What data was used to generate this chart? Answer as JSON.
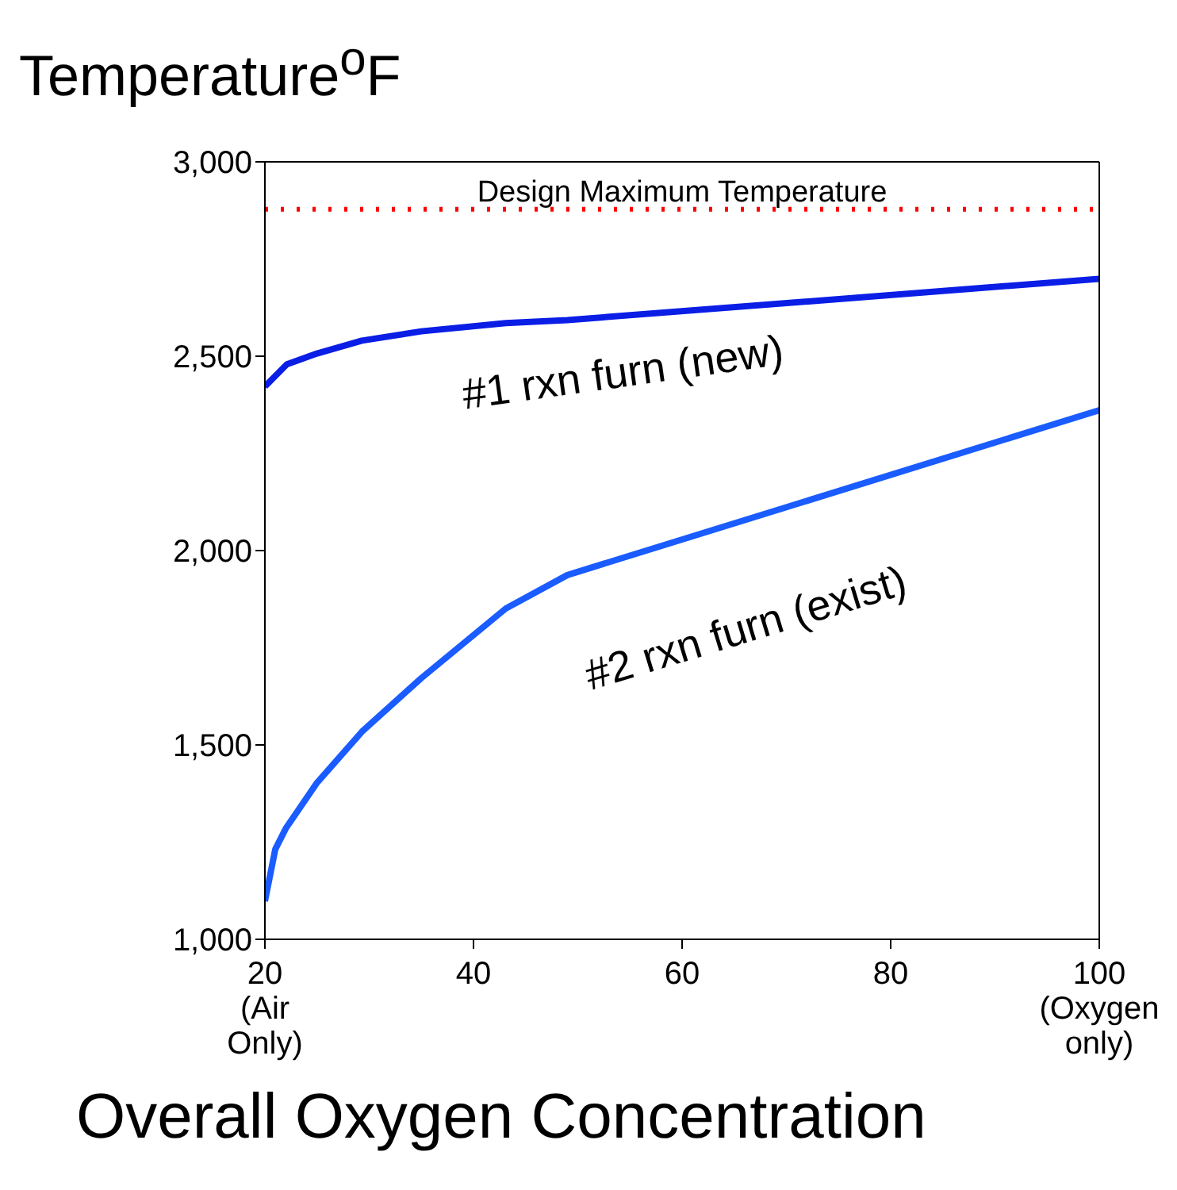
{
  "chart_data": {
    "type": "line",
    "ylabel": "Temperature$^{o}$F",
    "xlabel": "Overall Oxygen Concentration",
    "xlim": [
      20,
      100
    ],
    "xticks": [
      {
        "value": 20,
        "label": "20\n(Air\nOnly)"
      },
      40,
      60,
      80,
      {
        "value": 100,
        "label": "100\n(Oxygen\nonly)"
      }
    ],
    "ylim": [
      1000,
      3000
    ],
    "yticks": [
      {
        "value": 1000,
        "label": "1,000"
      },
      {
        "value": 1500,
        "label": "1,500"
      },
      {
        "value": 2000,
        "label": "2,000"
      },
      {
        "value": 2500,
        "label": "2,500"
      },
      {
        "value": 3000,
        "label": "3,000"
      }
    ],
    "marker": "none",
    "line_style": "solid",
    "series": [
      {
        "name": "#1 rxn furn (new)",
        "color": "#0a1ee6",
        "x": [
          20,
          22.1,
          25,
          29.3,
          35,
          43.1,
          49,
          100
        ],
        "values": [
          2422,
          2479,
          2507,
          2540,
          2564,
          2585,
          2593,
          2699
        ]
      },
      {
        "name": "#2 rxn furn (exist)",
        "color": "#1a5cff",
        "x": [
          20,
          21,
          22,
          25,
          29.3,
          35,
          43.1,
          49,
          100
        ],
        "values": [
          1098,
          1232,
          1285,
          1403,
          1534,
          1672,
          1851,
          1937,
          2361
        ]
      }
    ],
    "ref_lines": [
      {
        "axis": "y",
        "value": 2878,
        "label": "Design Maximum Temperature",
        "color": "#ff0000",
        "line_style": "dotted"
      }
    ]
  }
}
